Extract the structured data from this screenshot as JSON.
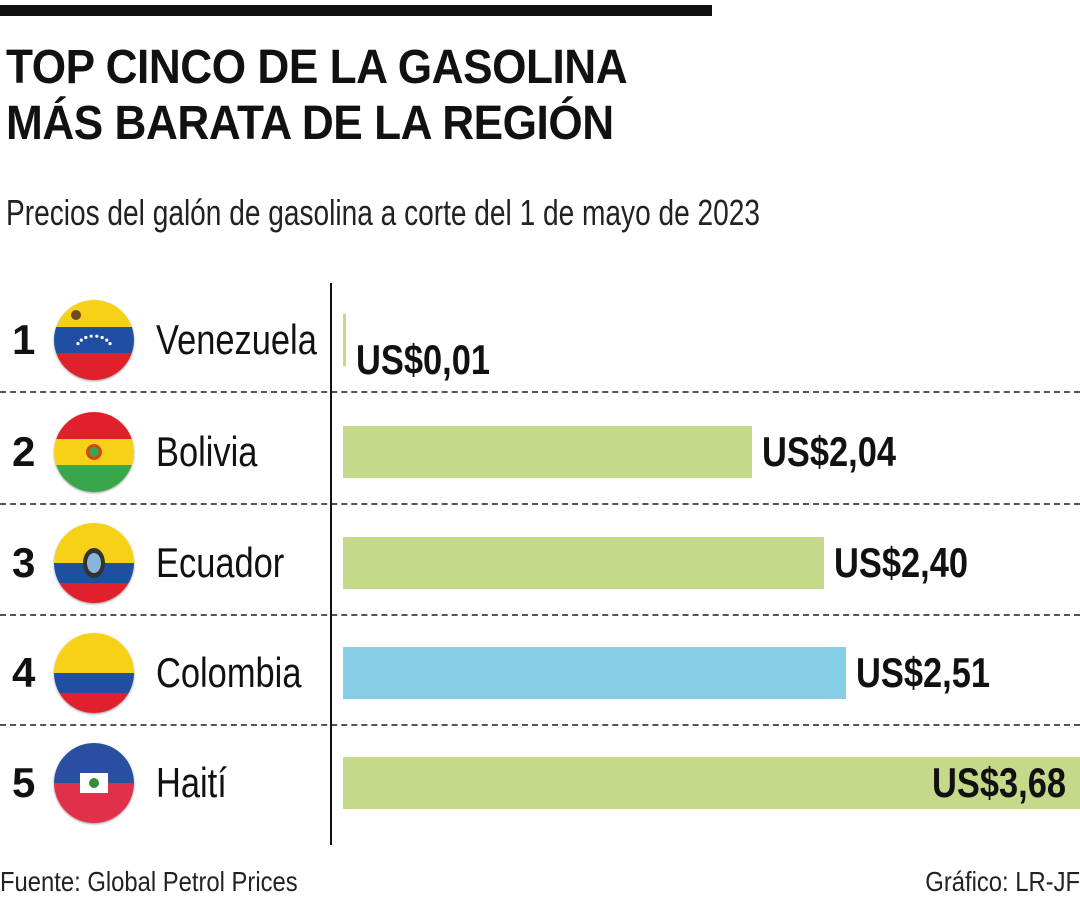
{
  "title_line1": "TOP CINCO DE LA GASOLINA",
  "title_line2": "MÁS BARATA DE LA REGIÓN",
  "subtitle": "Precios del galón de gasolina a corte del 1 de mayo de 2023",
  "source": "Fuente: Global Petrol Prices",
  "credit": "Gráfico: LR-JF",
  "colors": {
    "bar_default": "#c5d98a",
    "bar_highlight": "#86cde6"
  },
  "chart_data": {
    "type": "bar",
    "orientation": "horizontal",
    "unit": "US$ por galón",
    "xlim": [
      0,
      3.68
    ],
    "grid": false,
    "categories": [
      "Venezuela",
      "Bolivia",
      "Ecuador",
      "Colombia",
      "Haití"
    ],
    "ranks": [
      "1",
      "2",
      "3",
      "4",
      "5"
    ],
    "values": [
      0.01,
      2.04,
      2.4,
      2.51,
      3.68
    ],
    "labels": [
      "US$0,01",
      "US$2,04",
      "US$2,40",
      "US$2,51",
      "US$3,68"
    ],
    "flag_icons": [
      "venezuela-flag",
      "bolivia-flag",
      "ecuador-flag",
      "colombia-flag",
      "haiti-flag"
    ],
    "highlight": "Colombia"
  }
}
